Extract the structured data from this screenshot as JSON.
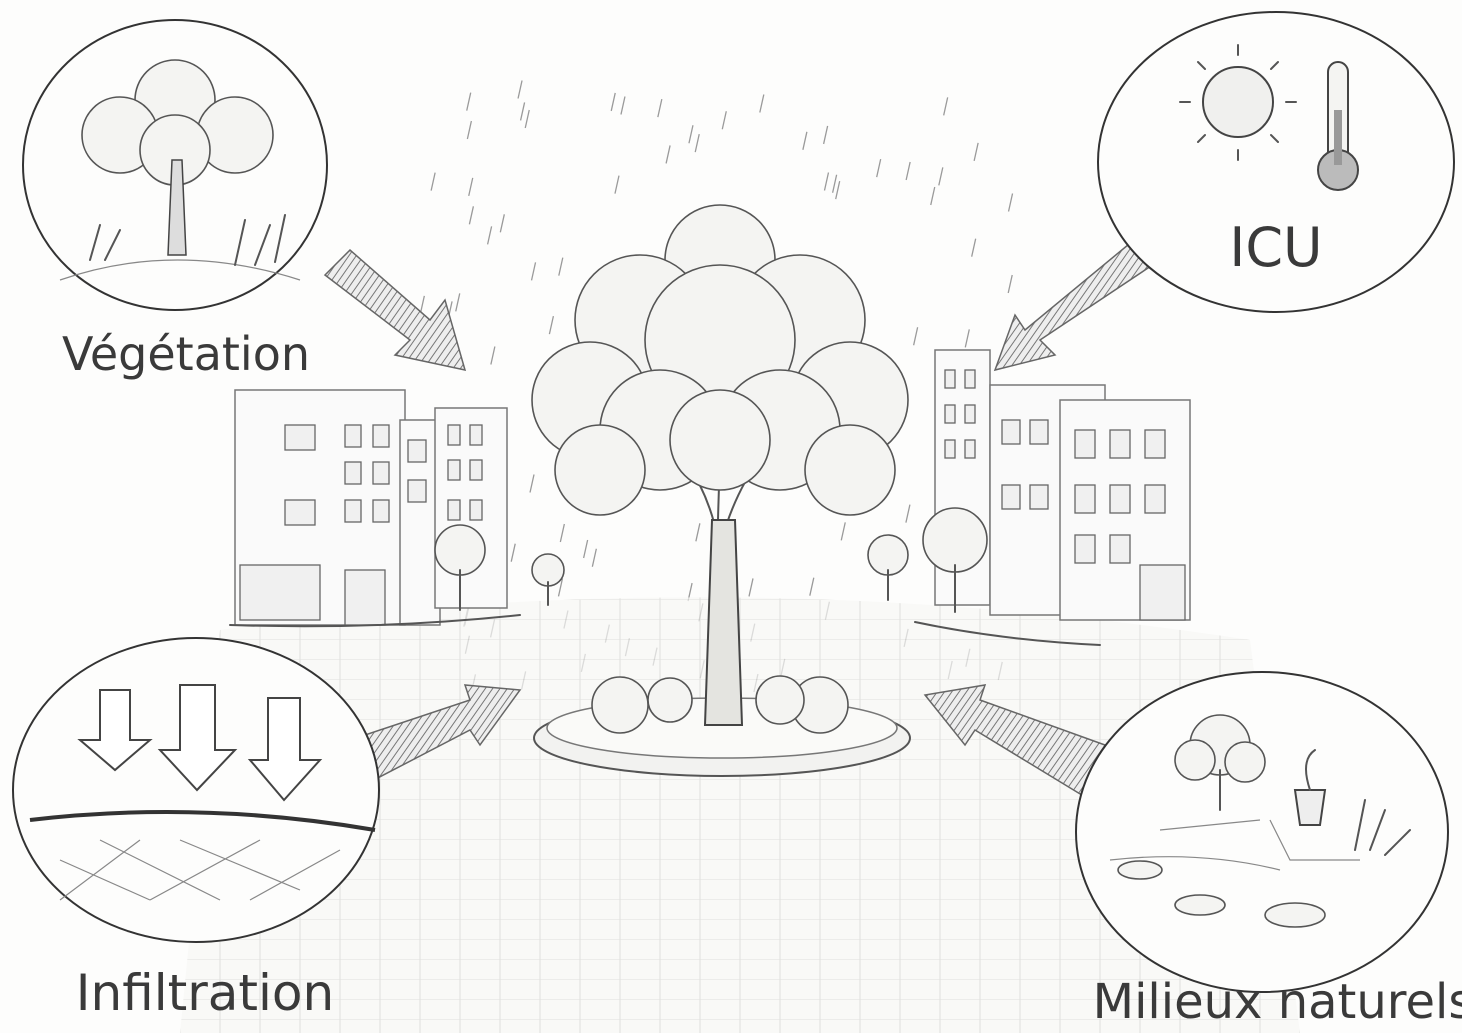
{
  "nodes": [
    {
      "label": "Végétation"
    },
    {
      "label": "ICU"
    },
    {
      "label": "Infiltration"
    },
    {
      "label": "Milieux naturels"
    }
  ]
}
